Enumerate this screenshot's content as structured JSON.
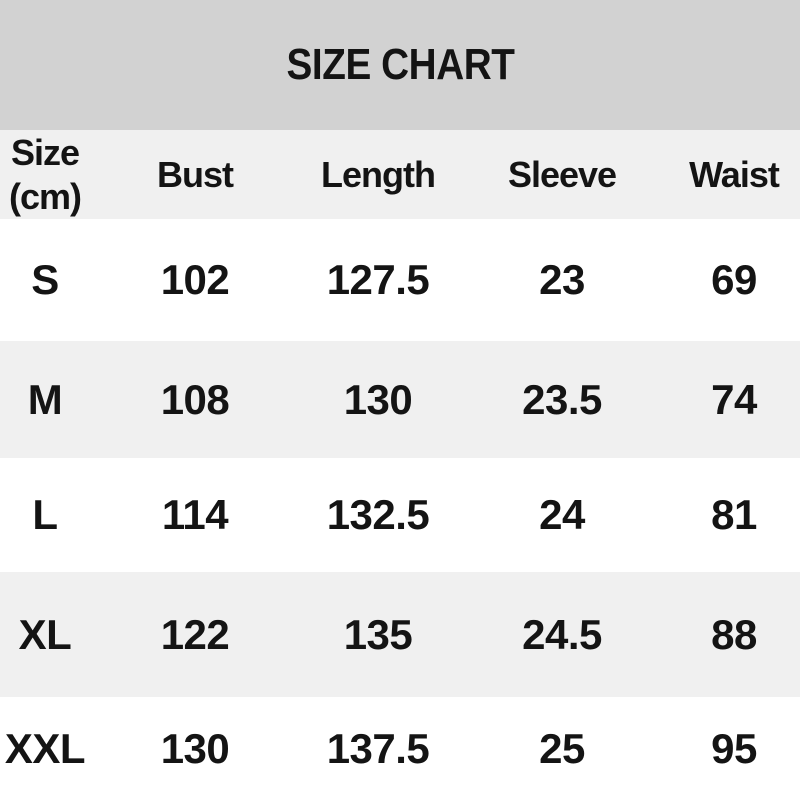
{
  "title": "SIZE CHART",
  "colors": {
    "title_band": "#d2d2d2",
    "header_band": "#f0f0f0",
    "row_stripe": "#f0f0f0",
    "row_base": "#ffffff",
    "text": "#141414"
  },
  "table": {
    "header": {
      "size_line1": "Size",
      "size_line2": "(cm)",
      "bust": "Bust",
      "length": "Length",
      "sleeve": "Sleeve",
      "waist": "Waist"
    },
    "rows": [
      {
        "size": "S",
        "bust": "102",
        "length": "127.5",
        "sleeve": "23",
        "waist": "69"
      },
      {
        "size": "M",
        "bust": "108",
        "length": "130",
        "sleeve": "23.5",
        "waist": "74"
      },
      {
        "size": "L",
        "bust": "114",
        "length": "132.5",
        "sleeve": "24",
        "waist": "81"
      },
      {
        "size": "XL",
        "bust": "122",
        "length": "135",
        "sleeve": "24.5",
        "waist": "88"
      },
      {
        "size": "XXL",
        "bust": "130",
        "length": "137.5",
        "sleeve": "25",
        "waist": "95"
      }
    ]
  },
  "chart_data": {
    "type": "table",
    "title": "SIZE CHART",
    "unit": "cm",
    "columns": [
      "Size (cm)",
      "Bust",
      "Length",
      "Sleeve",
      "Waist"
    ],
    "rows": [
      [
        "S",
        102,
        127.5,
        23,
        69
      ],
      [
        "M",
        108,
        130,
        23.5,
        74
      ],
      [
        "L",
        114,
        132.5,
        24,
        81
      ],
      [
        "XL",
        122,
        135,
        24.5,
        88
      ],
      [
        "XXL",
        130,
        137.5,
        25,
        95
      ]
    ]
  }
}
